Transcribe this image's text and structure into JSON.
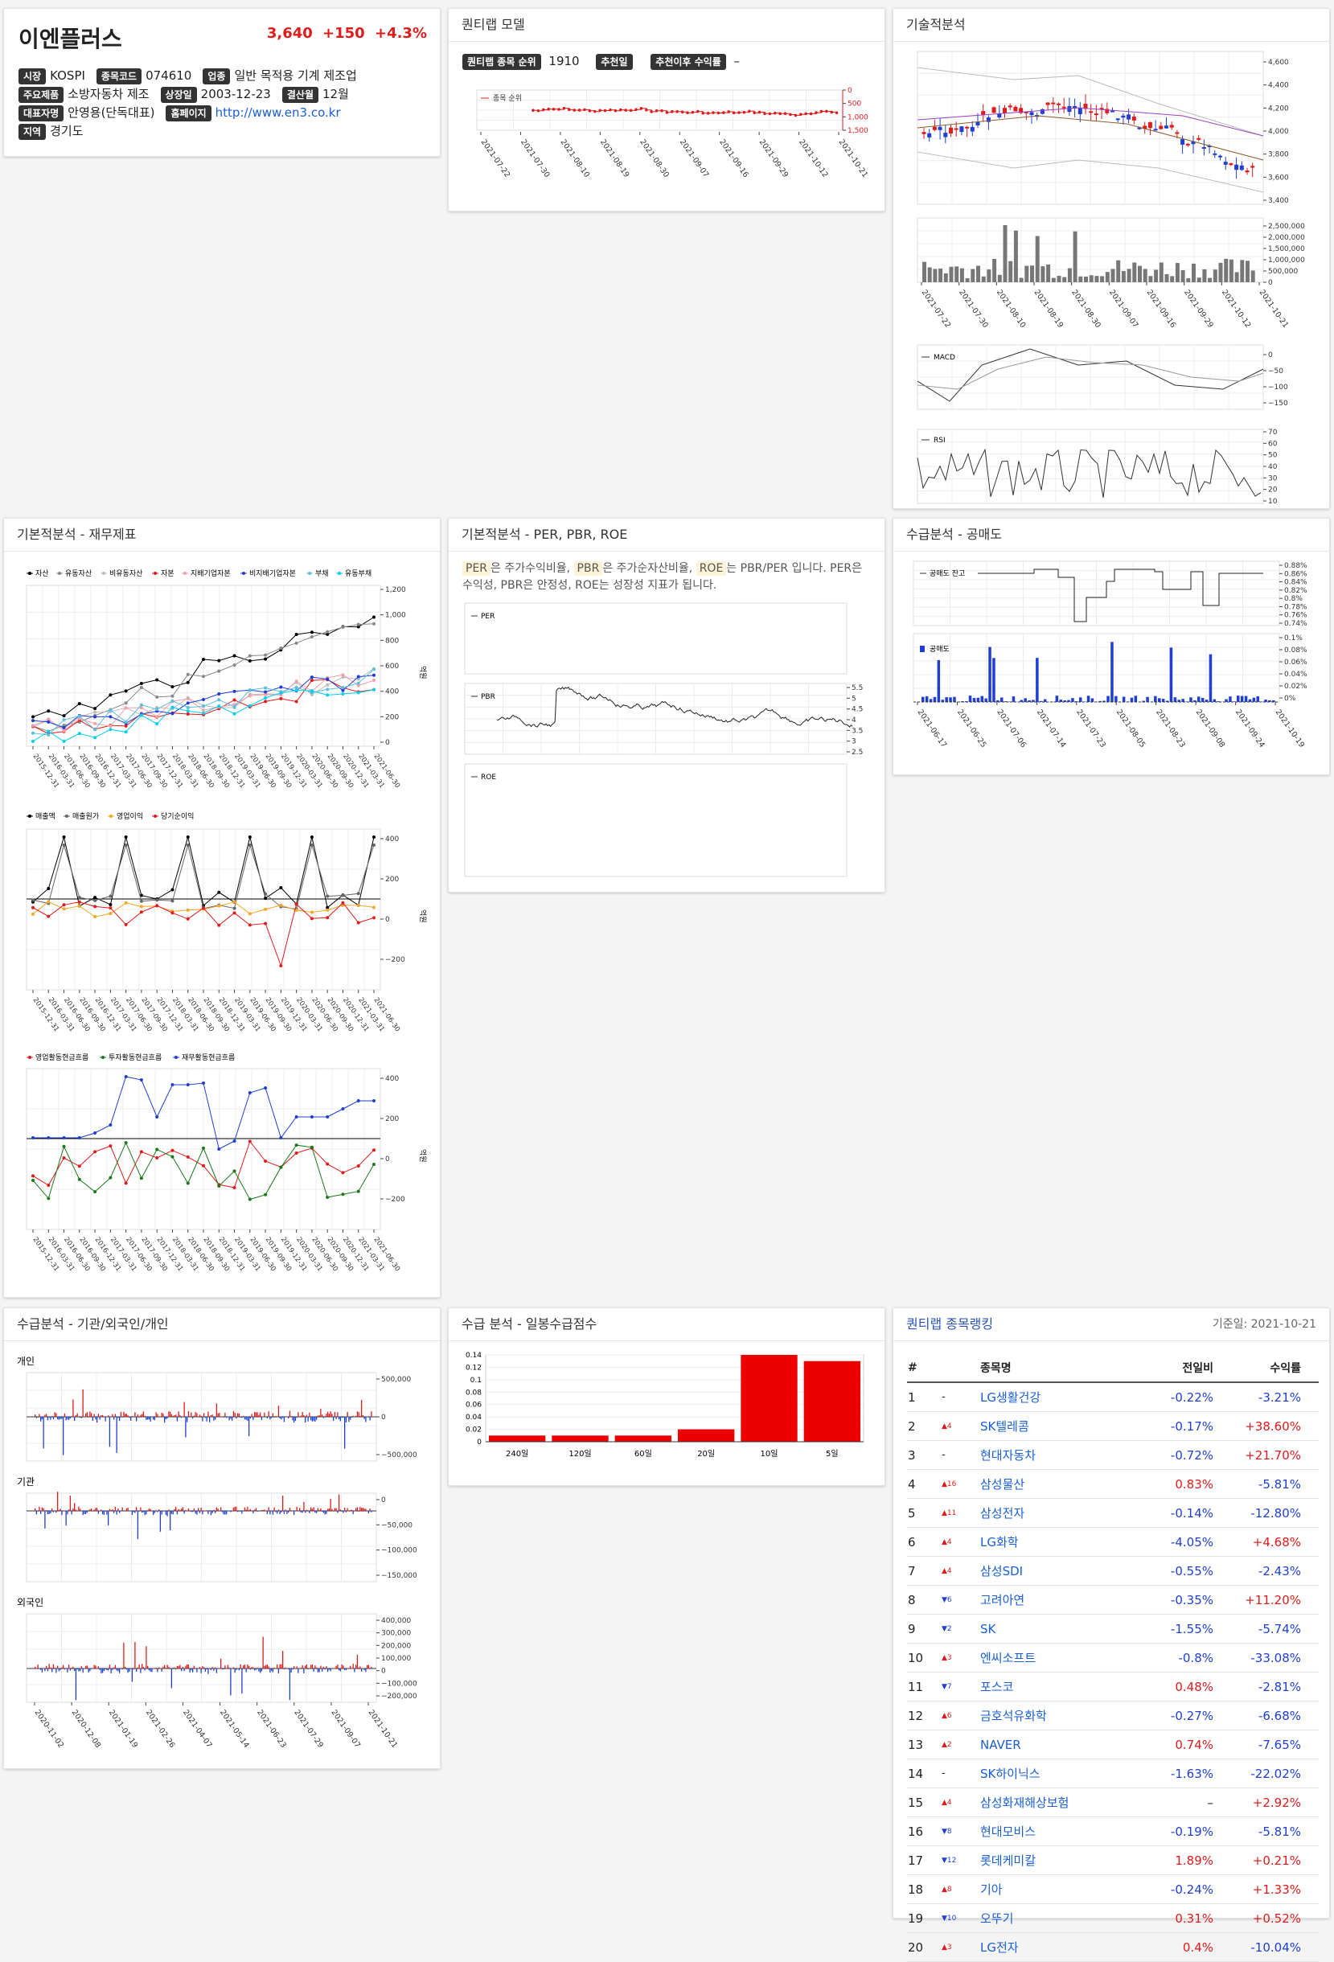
{
  "stock": {
    "name": "이엔플러스",
    "price": "3,640",
    "change": "+150",
    "pct": "+4.3%",
    "info": [
      [
        {
          "k": "시장",
          "v": "KOSPI"
        },
        {
          "k": "종목코드",
          "v": "074610"
        },
        {
          "k": "업종",
          "v": "일반 목적용 기계 제조업"
        }
      ],
      [
        {
          "k": "주요제품",
          "v": "소방자동차 제조"
        },
        {
          "k": "상장일",
          "v": "2003-12-23"
        },
        {
          "k": "결산월",
          "v": "12월"
        }
      ],
      [
        {
          "k": "대표자명",
          "v": "안영용(단독대표)"
        },
        {
          "k": "홈페이지",
          "v": "http://www.en3.co.kr",
          "link": true
        }
      ],
      [
        {
          "k": "지역",
          "v": "경기도"
        }
      ]
    ]
  },
  "model": {
    "title": "퀀티랩 모델",
    "rank_label": "퀀티랩 종목 순위",
    "rank_value": "1910",
    "rec_label": "추천일",
    "ret_label": "추천이후 수익률",
    "ret_value": "–",
    "legend": "종목 순위",
    "yticks": [
      "0",
      "500",
      "1,000",
      "1,500"
    ],
    "xticks": [
      "2021-07-22",
      "2021-07-30",
      "2021-08-10",
      "2021-08-19",
      "2021-08-30",
      "2021-09-07",
      "2021-09-16",
      "2021-09-29",
      "2021-10-12",
      "2021-10-21"
    ]
  },
  "technical": {
    "title": "기술적분석",
    "price_ticks": [
      "4,600",
      "4,400",
      "4,200",
      "4,000",
      "3,800",
      "3,600",
      "3,400"
    ],
    "vol_ticks": [
      "2,500,000",
      "2,000,000",
      "1,500,000",
      "1,000,000",
      "500,000",
      "0"
    ],
    "xticks": [
      "2021-07-22",
      "2021-07-30",
      "2021-08-10",
      "2021-08-19",
      "2021-08-30",
      "2021-09-07",
      "2021-09-16",
      "2021-09-29",
      "2021-10-12",
      "2021-10-21"
    ],
    "macd_label": "MACD",
    "macd_ticks": [
      "0",
      "−50",
      "−100",
      "−150"
    ],
    "rsi_label": "RSI",
    "rsi_ticks": [
      "70",
      "60",
      "50",
      "40",
      "30",
      "20",
      "10"
    ]
  },
  "fund": {
    "title": "기본적분석 - 재무제표",
    "legend1": [
      "자산",
      "유동자산",
      "비유동자산",
      "자본",
      "지배기업자본",
      "비지배기업자본",
      "부채",
      "유동부채"
    ],
    "ticks1": [
      "1,200",
      "1,000",
      "800",
      "600",
      "400",
      "200",
      "0"
    ],
    "legend2": [
      "매출액",
      "매출원가",
      "영업이익",
      "당기순이익"
    ],
    "ticks2": [
      "400",
      "200",
      "0",
      "−200"
    ],
    "legend3": [
      "영업활동현금흐름",
      "투자활동현금흐름",
      "재무활동현금흐름"
    ],
    "ticks3": [
      "400",
      "200",
      "0",
      "−200"
    ],
    "unit": "억원",
    "xticks": [
      "2015-12-31",
      "2016-03-31",
      "2016-06-30",
      "2016-09-30",
      "2016-12-31",
      "2017-03-31",
      "2017-06-30",
      "2017-09-30",
      "2017-12-31",
      "2018-03-31",
      "2018-06-30",
      "2018-09-30",
      "2018-12-31",
      "2019-03-31",
      "2019-06-30",
      "2019-09-30",
      "2019-12-31",
      "2020-03-31",
      "2020-06-30",
      "2020-09-30",
      "2020-12-31",
      "2021-03-31",
      "2021-06-30"
    ]
  },
  "per": {
    "title": "기본적분석 - PER, PBR, ROE",
    "t1": "PER",
    "t2": "은 주가수익비율, ",
    "t3": "PBR",
    "t4": "은 주가순자산비율, ",
    "t5": "ROE",
    "t6": "는 PBR/PER 입니다. PER은 수익성, PBR은 안정성, ROE는 성장성 지표가 됩니다.",
    "per_label": "PER",
    "pbr_label": "PBR",
    "roe_label": "ROE",
    "pbr_ticks": [
      "5.5",
      "5",
      "4.5",
      "4",
      "3.5",
      "3",
      "2.5"
    ]
  },
  "short": {
    "title": "수급분석 - 공매도",
    "bal_label": "공매도 잔고",
    "bal_ticks": [
      "0.88%",
      "0.86%",
      "0.84%",
      "0.82%",
      "0.8%",
      "0.78%",
      "0.76%",
      "0.74%"
    ],
    "sell_label": "공매도",
    "sell_ticks": [
      "0.1%",
      "0.08%",
      "0.06%",
      "0.04%",
      "0.02%",
      "0%"
    ],
    "xticks": [
      "2021-06-17",
      "2021-06-25",
      "2021-07-06",
      "2021-07-14",
      "2021-07-23",
      "2021-08-05",
      "2021-08-23",
      "2021-09-08",
      "2021-09-24",
      "2021-10-19"
    ]
  },
  "investor": {
    "title": "수급분석 - 기관/외국인/개인",
    "p_label": "개인",
    "p_ticks": [
      "500,000",
      "0",
      "−500,000"
    ],
    "i_label": "기관",
    "i_ticks": [
      "0",
      "−50,000",
      "−100,000",
      "−150,000"
    ],
    "f_label": "외국인",
    "f_ticks": [
      "400,000",
      "300,000",
      "200,000",
      "100,000",
      "0",
      "−100,000",
      "−200,000"
    ],
    "xticks": [
      "2020-11-02",
      "2020-12-08",
      "2021-01-19",
      "2021-02-26",
      "2021-04-07",
      "2021-05-14",
      "2021-06-23",
      "2021-07-29",
      "2021-09-07",
      "2021-10-21"
    ]
  },
  "flow": {
    "title": "수급 분석 - 일봉수급점수",
    "yticks": [
      "0.14",
      "0.12",
      "0.1",
      "0.08",
      "0.06",
      "0.04",
      "0.02",
      "0"
    ]
  },
  "chart_data": {
    "type": "bar",
    "categories": [
      "240일",
      "120일",
      "60일",
      "20일",
      "10일",
      "5일"
    ],
    "values": [
      0.01,
      0.01,
      0.01,
      0.02,
      0.14,
      0.13
    ],
    "ylim": [
      0,
      0.14
    ],
    "color": "#ee0000"
  },
  "ranking": {
    "title": "퀀티랩 종목랭킹",
    "date": "기준일: 2021-10-21",
    "cols": [
      "#",
      "종목명",
      "전일비",
      "수익률"
    ],
    "rows": [
      {
        "n": "1",
        "mv": "-",
        "dir": "",
        "name": "LG생활건강",
        "d": "-0.22%",
        "dc": "b",
        "r": "-3.21%",
        "rc": "b"
      },
      {
        "n": "2",
        "mv": "4",
        "dir": "up",
        "name": "SK텔레콤",
        "d": "-0.17%",
        "dc": "b",
        "r": "+38.60%",
        "rc": "r"
      },
      {
        "n": "3",
        "mv": "-",
        "dir": "",
        "name": "현대자동차",
        "d": "-0.72%",
        "dc": "b",
        "r": "+21.70%",
        "rc": "r"
      },
      {
        "n": "4",
        "mv": "16",
        "dir": "up",
        "name": "삼성물산",
        "d": "0.83%",
        "dc": "r",
        "r": "-5.81%",
        "rc": "b"
      },
      {
        "n": "5",
        "mv": "11",
        "dir": "up",
        "name": "삼성전자",
        "d": "-0.14%",
        "dc": "b",
        "r": "-12.80%",
        "rc": "b"
      },
      {
        "n": "6",
        "mv": "4",
        "dir": "up",
        "name": "LG화학",
        "d": "-4.05%",
        "dc": "b",
        "r": "+4.68%",
        "rc": "r"
      },
      {
        "n": "7",
        "mv": "4",
        "dir": "up",
        "name": "삼성SDI",
        "d": "-0.55%",
        "dc": "b",
        "r": "-2.43%",
        "rc": "b"
      },
      {
        "n": "8",
        "mv": "6",
        "dir": "down",
        "name": "고려아연",
        "d": "-0.35%",
        "dc": "b",
        "r": "+11.20%",
        "rc": "r"
      },
      {
        "n": "9",
        "mv": "2",
        "dir": "down",
        "name": "SK",
        "d": "-1.55%",
        "dc": "b",
        "r": "-5.74%",
        "rc": "b"
      },
      {
        "n": "10",
        "mv": "3",
        "dir": "up",
        "name": "엔씨소프트",
        "d": "-0.8%",
        "dc": "b",
        "r": "-33.08%",
        "rc": "b"
      },
      {
        "n": "11",
        "mv": "7",
        "dir": "down",
        "name": "포스코",
        "d": "0.48%",
        "dc": "r",
        "r": "-2.81%",
        "rc": "b"
      },
      {
        "n": "12",
        "mv": "6",
        "dir": "up",
        "name": "금호석유화학",
        "d": "-0.27%",
        "dc": "b",
        "r": "-6.68%",
        "rc": "b"
      },
      {
        "n": "13",
        "mv": "2",
        "dir": "up",
        "name": "NAVER",
        "d": "0.74%",
        "dc": "r",
        "r": "-7.65%",
        "rc": "b"
      },
      {
        "n": "14",
        "mv": "-",
        "dir": "",
        "name": "SK하이닉스",
        "d": "-1.63%",
        "dc": "b",
        "r": "-22.02%",
        "rc": "b"
      },
      {
        "n": "15",
        "mv": "4",
        "dir": "up",
        "name": "삼성화재해상보험",
        "d": "–",
        "dc": "k",
        "r": "+2.92%",
        "rc": "r"
      },
      {
        "n": "16",
        "mv": "8",
        "dir": "down",
        "name": "현대모비스",
        "d": "-0.19%",
        "dc": "b",
        "r": "-5.81%",
        "rc": "b"
      },
      {
        "n": "17",
        "mv": "12",
        "dir": "down",
        "name": "롯데케미칼",
        "d": "1.89%",
        "dc": "r",
        "r": "+0.21%",
        "rc": "r"
      },
      {
        "n": "18",
        "mv": "8",
        "dir": "up",
        "name": "기아",
        "d": "-0.24%",
        "dc": "b",
        "r": "+1.33%",
        "rc": "r"
      },
      {
        "n": "19",
        "mv": "10",
        "dir": "down",
        "name": "오뚜기",
        "d": "0.31%",
        "dc": "r",
        "r": "+0.52%",
        "rc": "r"
      },
      {
        "n": "20",
        "mv": "3",
        "dir": "up",
        "name": "LG전자",
        "d": "0.4%",
        "dc": "r",
        "r": "-10.04%",
        "rc": "b"
      }
    ]
  }
}
